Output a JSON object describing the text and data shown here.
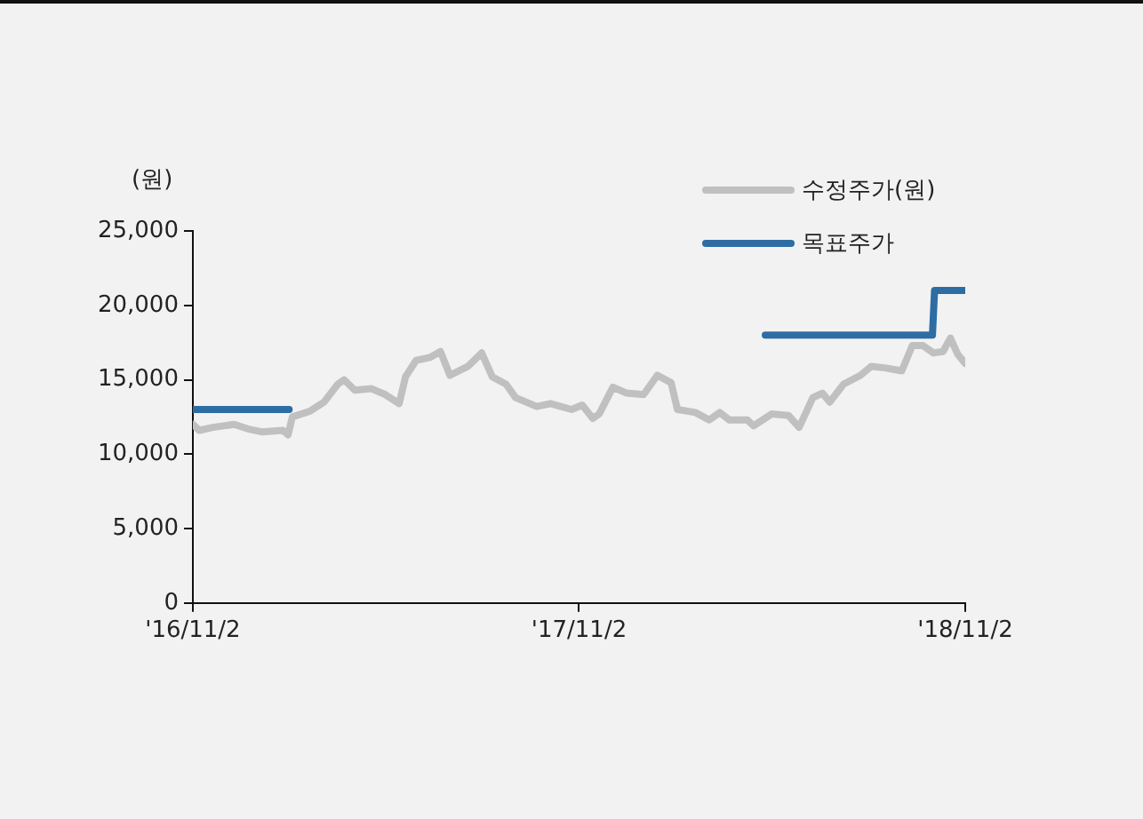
{
  "chart_data": {
    "type": "line",
    "ylabel": "(원)",
    "legend": "top right",
    "grid": false,
    "marker": "none",
    "line_style": "solid",
    "xlim": [
      "2016-11-02",
      "2018-11-02"
    ],
    "xticks": [
      {
        "value": "2016-11-02",
        "label": "'16/11/2"
      },
      {
        "value": "2017-11-02",
        "label": "'17/11/2"
      },
      {
        "value": "2018-11-02",
        "label": "'18/11/2"
      }
    ],
    "ylim": [
      0,
      25000
    ],
    "yticks": [
      {
        "value": 0,
        "label": "0"
      },
      {
        "value": 5000,
        "label": "5,000"
      },
      {
        "value": 10000,
        "label": "10,000"
      },
      {
        "value": 15000,
        "label": "15,000"
      },
      {
        "value": 20000,
        "label": "20,000"
      },
      {
        "value": 25000,
        "label": "25,000"
      }
    ],
    "series": [
      {
        "name": "수정주가(원)",
        "color": "#c0c0c0",
        "x": [
          "2016-11-02",
          "2016-11-08",
          "2016-11-21",
          "2016-12-11",
          "2016-12-24",
          "2017-01-06",
          "2017-01-26",
          "2017-01-31",
          "2017-02-04",
          "2017-02-21",
          "2017-03-06",
          "2017-03-19",
          "2017-03-25",
          "2017-04-04",
          "2017-04-20",
          "2017-05-03",
          "2017-05-16",
          "2017-05-22",
          "2017-06-01",
          "2017-06-14",
          "2017-06-24",
          "2017-07-03",
          "2017-07-20",
          "2017-08-02",
          "2017-08-12",
          "2017-08-25",
          "2017-09-03",
          "2017-09-23",
          "2017-10-06",
          "2017-10-26",
          "2017-11-05",
          "2017-11-15",
          "2017-11-21",
          "2017-12-04",
          "2017-12-17",
          "2018-01-02",
          "2018-01-15",
          "2018-01-28",
          "2018-02-03",
          "2018-02-20",
          "2018-03-05",
          "2018-03-15",
          "2018-03-24",
          "2018-04-10",
          "2018-04-16",
          "2018-05-03",
          "2018-05-19",
          "2018-05-29",
          "2018-06-11",
          "2018-06-20",
          "2018-06-27",
          "2018-07-10",
          "2018-07-26",
          "2018-08-05",
          "2018-08-18",
          "2018-09-03",
          "2018-09-13",
          "2018-09-23",
          "2018-10-03",
          "2018-10-12",
          "2018-10-19",
          "2018-10-26",
          "2018-11-02"
        ],
        "values": [
          12000,
          11600,
          11800,
          12000,
          11700,
          11500,
          11600,
          11300,
          12500,
          12900,
          13500,
          14700,
          15000,
          14300,
          14400,
          14000,
          13400,
          15200,
          16300,
          16500,
          16900,
          15300,
          15900,
          16800,
          15200,
          14700,
          13800,
          13200,
          13400,
          13000,
          13300,
          12400,
          12700,
          14500,
          14100,
          14000,
          15300,
          14800,
          13000,
          12800,
          12300,
          12800,
          12300,
          12300,
          11900,
          12700,
          12600,
          11800,
          13800,
          14100,
          13500,
          14700,
          15300,
          15900,
          15800,
          15600,
          17300,
          17300,
          16800,
          16900,
          17800,
          16700,
          16100
        ]
      },
      {
        "name": "목표주가",
        "color": "#2e6da4",
        "x": [
          "2016-11-02",
          "2017-02-01",
          "2017-02-02",
          "2018-04-27",
          "2018-10-02",
          "2018-10-04",
          "2018-11-02"
        ],
        "values": [
          13000,
          13000,
          null,
          18000,
          18000,
          21000,
          21000
        ]
      }
    ]
  }
}
